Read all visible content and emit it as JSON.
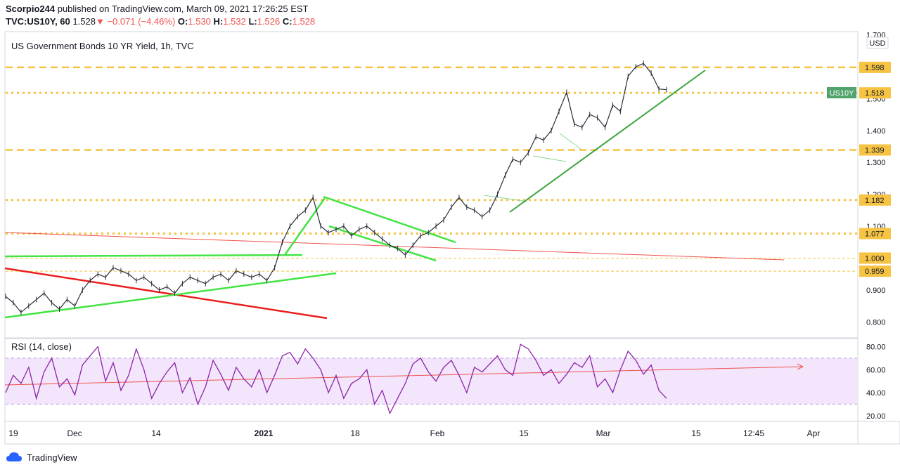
{
  "header": {
    "author": "Scorpio244",
    "published_text": "published on TradingView.com, March 09, 2021 17:26:25 EST",
    "symbol_line": "TVC:US10Y, 60",
    "last": "1.528",
    "change": "−0.071 (−4.46%)",
    "open_label": "O:",
    "open": "1.530",
    "high_label": "H:",
    "high": "1.532",
    "low_label": "L:",
    "low": "1.526",
    "close_label": "C:",
    "close": "1.528"
  },
  "chart_data": [
    {
      "type": "line",
      "title": "US Government Bonds 10 YR Yield, 1h, TVC",
      "currency": "USD",
      "symbol_tag": "US10Y",
      "y_axis_ticks": [
        "0.800",
        "0.900",
        "1.000",
        "1.100",
        "1.200",
        "1.300",
        "1.400",
        "1.500",
        "1.600",
        "1.700"
      ],
      "ylim": [
        0.75,
        1.71
      ],
      "x_axis_ticks": [
        "19",
        "Dec",
        "14",
        "2021",
        "18",
        "Feb",
        "15",
        "Mar",
        "15",
        "12:45",
        "Apr"
      ],
      "horizontal_levels": [
        {
          "value": 1.598,
          "label": "1.598",
          "style": "dashed",
          "color": "#f6c343"
        },
        {
          "value": 1.518,
          "label": "1.518",
          "style": "dotted",
          "color": "#f6c343"
        },
        {
          "value": 1.339,
          "label": "1.339",
          "style": "dashed",
          "color": "#f6c343"
        },
        {
          "value": 1.182,
          "label": "1.182",
          "style": "dotted",
          "color": "#f6c343"
        },
        {
          "value": 1.077,
          "label": "1.077",
          "style": "dotted",
          "color": "#f6c343"
        },
        {
          "value": 1.0,
          "label": "1.000",
          "style": "thin-dashed",
          "color": "#f6c343"
        },
        {
          "value": 0.959,
          "label": "0.959",
          "style": "thin-dashed",
          "color": "#f6c343"
        }
      ],
      "series": [
        {
          "values": [
            0.88,
            0.86,
            0.83,
            0.85,
            0.87,
            0.89,
            0.86,
            0.84,
            0.87,
            0.85,
            0.9,
            0.93,
            0.95,
            0.94,
            0.97,
            0.96,
            0.95,
            0.93,
            0.94,
            0.92,
            0.9,
            0.91,
            0.89,
            0.92,
            0.94,
            0.93,
            0.92,
            0.94,
            0.95,
            0.93,
            0.96,
            0.95,
            0.94,
            0.95,
            0.93,
            0.97,
            1.05,
            1.1,
            1.13,
            1.15,
            1.19,
            1.1,
            1.08,
            1.09,
            1.1,
            1.07,
            1.09,
            1.1,
            1.08,
            1.06,
            1.04,
            1.03,
            1.01,
            1.04,
            1.07,
            1.08,
            1.1,
            1.12,
            1.16,
            1.19,
            1.16,
            1.15,
            1.13,
            1.15,
            1.2,
            1.26,
            1.31,
            1.3,
            1.33,
            1.38,
            1.37,
            1.4,
            1.46,
            1.52,
            1.42,
            1.41,
            1.45,
            1.44,
            1.41,
            1.48,
            1.46,
            1.57,
            1.6,
            1.61,
            1.58,
            1.53,
            1.528
          ]
        }
      ],
      "last_value_label": "1.528"
    },
    {
      "type": "line",
      "title": "RSI (14, close)",
      "y_axis_ticks": [
        "20.00",
        "40.00",
        "60.00",
        "80.00"
      ],
      "ylim": [
        15,
        87
      ],
      "bands": [
        30,
        70
      ],
      "series": [
        {
          "values": [
            40,
            55,
            48,
            62,
            35,
            58,
            70,
            45,
            52,
            38,
            64,
            72,
            80,
            50,
            66,
            42,
            55,
            78,
            60,
            35,
            48,
            58,
            66,
            40,
            53,
            30,
            45,
            68,
            56,
            42,
            62,
            52,
            45,
            60,
            40,
            55,
            72,
            75,
            65,
            78,
            70,
            60,
            40,
            55,
            35,
            48,
            52,
            60,
            30,
            42,
            22,
            35,
            48,
            65,
            70,
            58,
            50,
            62,
            68,
            55,
            40,
            62,
            58,
            65,
            72,
            60,
            55,
            82,
            78,
            68,
            55,
            60,
            48,
            56,
            66,
            62,
            72,
            45,
            52,
            40,
            60,
            76,
            68,
            56,
            64,
            42,
            35
          ]
        }
      ]
    }
  ],
  "footer": {
    "brand": "TradingView"
  }
}
